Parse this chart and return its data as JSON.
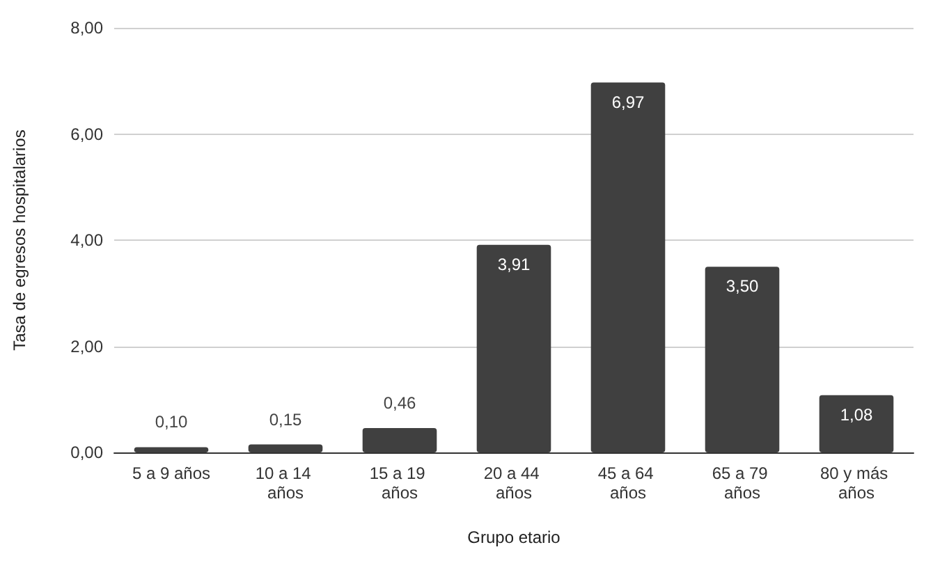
{
  "chart_data": {
    "type": "bar",
    "xlabel": "Grupo etario",
    "ylabel": "Tasa de egresos hospitalarios",
    "categories": [
      "5 a 9 años",
      "10 a 14 años",
      "15 a 19 años",
      "20 a 44 años",
      "45 a 64 años",
      "65 a 79 años",
      "80 y más años"
    ],
    "values": [
      0.1,
      0.15,
      0.46,
      3.91,
      6.97,
      3.5,
      1.08
    ],
    "value_labels": [
      "0,10",
      "0,15",
      "0,46",
      "3,91",
      "6,97",
      "3,50",
      "1,08"
    ],
    "color": "#404040",
    "ylim": [
      0,
      8
    ],
    "yticks": [
      {
        "value": 0,
        "label": "0,00"
      },
      {
        "value": 2,
        "label": "2,00"
      },
      {
        "value": 4,
        "label": "4,00"
      },
      {
        "value": 6,
        "label": "6,00"
      },
      {
        "value": 8,
        "label": "8,00"
      }
    ],
    "grid": "y"
  }
}
